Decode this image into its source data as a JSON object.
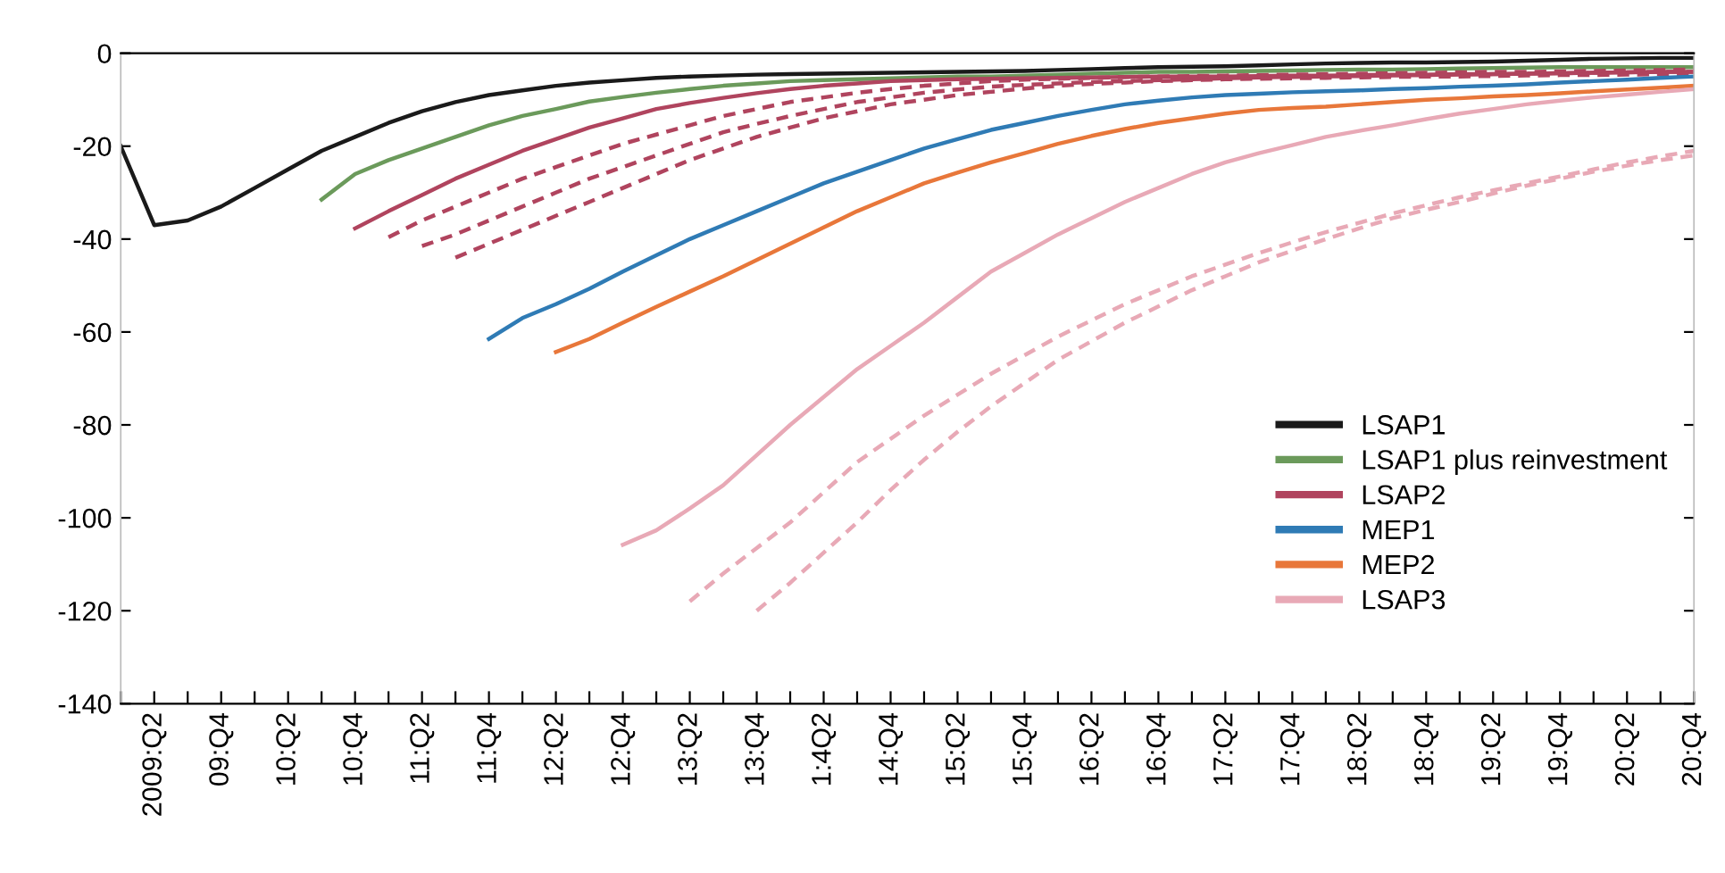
{
  "chart_data": {
    "type": "line",
    "categories": [
      null,
      "2009:Q2",
      null,
      "09:Q4",
      null,
      "10:Q2",
      null,
      "10:Q4",
      null,
      "11:Q2",
      null,
      "11:Q4",
      null,
      "12:Q2",
      null,
      "12:Q4",
      null,
      "13:Q2",
      null,
      "13:Q4",
      null,
      "1:4Q2",
      null,
      "14:Q4",
      null,
      "15:Q2",
      null,
      "15:Q4",
      null,
      "16:Q2",
      null,
      "16:Q4",
      null,
      "17:Q2",
      null,
      "17:Q4",
      null,
      "18:Q2",
      null,
      "18:Q4",
      null,
      "19:Q2",
      null,
      "19:Q4",
      null,
      "20:Q2",
      null,
      "20:Q4"
    ],
    "ylim": [
      -140,
      0
    ],
    "yticks": [
      -140,
      -120,
      -100,
      -80,
      -60,
      -40,
      -20,
      0
    ],
    "grid": false,
    "legend": "bottom right",
    "marker": "none",
    "series": [
      {
        "name": "LSAP1",
        "color": "#1a1a1a",
        "line_style": "solid",
        "values": [
          -20,
          -37,
          -36,
          -33,
          -29,
          -25,
          -21,
          -18,
          -15,
          -12.5,
          -10.5,
          -9,
          -8,
          -7,
          -6.3,
          -5.8,
          -5.3,
          -5,
          -4.8,
          -4.6,
          -4.5,
          -4.4,
          -4.3,
          -4.2,
          -4.1,
          -4,
          -3.9,
          -3.8,
          -3.6,
          -3.4,
          -3.2,
          -3,
          -2.9,
          -2.8,
          -2.6,
          -2.4,
          -2.2,
          -2.1,
          -2,
          -2,
          -1.9,
          -1.8,
          -1.6,
          -1.4,
          -1.2,
          -1.1,
          -1,
          -1
        ]
      },
      {
        "name": "LSAP1 plus reinvestment",
        "color": "#6b9a5b",
        "line_style": "solid",
        "values": [
          null,
          null,
          null,
          null,
          null,
          null,
          -31.5,
          -26,
          -23,
          -20.5,
          -18,
          -15.5,
          -13.5,
          -12,
          -10.4,
          -9.4,
          -8.5,
          -7.7,
          -7,
          -6.5,
          -6,
          -5.8,
          -5.6,
          -5.4,
          -5.2,
          -5,
          -5,
          -4.8,
          -4.6,
          -4.4,
          -4.2,
          -4,
          -4,
          -3.9,
          -3.8,
          -3.7,
          -3.6,
          -3.5,
          -3.5,
          -3.4,
          -3.3,
          -3.2,
          -3.1,
          -3,
          -3,
          -3,
          -3,
          -3
        ]
      },
      {
        "name": "LSAP2",
        "color": "#b0445e",
        "line_style": "solid",
        "values": [
          null,
          null,
          null,
          null,
          null,
          null,
          null,
          -37.7,
          -34,
          -30.5,
          -27,
          -24,
          -21,
          -18.5,
          -16,
          -14,
          -12,
          -10.7,
          -9.6,
          -8.6,
          -7.7,
          -7,
          -6.5,
          -6,
          -5.8,
          -5.6,
          -5.5,
          -5.4,
          -5.3,
          -5.2,
          -5.1,
          -5,
          -5,
          -5,
          -4.9,
          -4.8,
          -4.8,
          -4.7,
          -4.6,
          -4.6,
          -4.5,
          -4.5,
          -4.4,
          -4.3,
          -4.2,
          -4.1,
          -4,
          -4
        ]
      },
      {
        "color": "#b0445e",
        "line_style": "dashed",
        "values": [
          null,
          null,
          null,
          null,
          null,
          null,
          null,
          null,
          -39.6,
          -36,
          -33,
          -30,
          -27,
          -24.5,
          -22,
          -19.5,
          -17.5,
          -15.5,
          -13.5,
          -12,
          -10.5,
          -9.5,
          -8.5,
          -7.7,
          -7,
          -6.5,
          -6,
          -5.7,
          -5.5,
          -5.3,
          -5.1,
          -5,
          -4.9,
          -4.8,
          -4.7,
          -4.6,
          -4.5,
          -4.4,
          -4.3,
          -4.2,
          -4.1,
          -4,
          -4,
          -3.9,
          -3.8,
          -3.7,
          -3.6,
          -3.5
        ]
      },
      {
        "color": "#b0445e",
        "line_style": "dashed",
        "values": [
          null,
          null,
          null,
          null,
          null,
          null,
          null,
          null,
          null,
          -41.5,
          -39,
          -36,
          -33,
          -30,
          -27,
          -24.5,
          -22,
          -19.5,
          -17,
          -15.2,
          -13.5,
          -12,
          -10.5,
          -9.5,
          -8.5,
          -7.8,
          -7.2,
          -6.8,
          -6.5,
          -6.2,
          -6,
          -5.8,
          -5.6,
          -5.4,
          -5.2,
          -5.1,
          -5,
          -4.9,
          -4.8,
          -4.7,
          -4.6,
          -4.5,
          -4.4,
          -4.3,
          -4.2,
          -4.1,
          -4,
          -4
        ]
      },
      {
        "color": "#b0445e",
        "line_style": "dashed",
        "values": [
          null,
          null,
          null,
          null,
          null,
          null,
          null,
          null,
          null,
          null,
          -44,
          -41,
          -38,
          -35,
          -32,
          -29,
          -26,
          -23,
          -20.5,
          -18,
          -16,
          -14,
          -12.5,
          -11,
          -10,
          -9,
          -8.3,
          -7.6,
          -7,
          -6.6,
          -6.3,
          -6,
          -5.8,
          -5.6,
          -5.5,
          -5.4,
          -5.3,
          -5.2,
          -5.1,
          -5,
          -5,
          -4.9,
          -4.8,
          -4.7,
          -4.7,
          -4.6,
          -4.5,
          -4.5
        ]
      },
      {
        "name": "MEP1",
        "color": "#2f7bb5",
        "line_style": "solid",
        "values": [
          null,
          null,
          null,
          null,
          null,
          null,
          null,
          null,
          null,
          null,
          null,
          -61.5,
          -57,
          -54,
          -50.7,
          -47,
          -43.5,
          -40,
          -37,
          -34,
          -31,
          -28,
          -25.5,
          -23,
          -20.5,
          -18.5,
          -16.5,
          -15,
          -13.5,
          -12.2,
          -11,
          -10.2,
          -9.5,
          -9,
          -8.7,
          -8.4,
          -8.2,
          -8,
          -7.7,
          -7.5,
          -7.2,
          -7,
          -6.7,
          -6.3,
          -6,
          -5.7,
          -5.3,
          -5
        ]
      },
      {
        "name": "MEP2",
        "color": "#e8773a",
        "line_style": "solid",
        "values": [
          null,
          null,
          null,
          null,
          null,
          null,
          null,
          null,
          null,
          null,
          null,
          null,
          null,
          -64.3,
          -61.5,
          -58,
          -54.6,
          -51.3,
          -48,
          -44.5,
          -41,
          -37.5,
          -34,
          -31,
          -28,
          -25.7,
          -23.5,
          -21.5,
          -19.5,
          -17.8,
          -16.3,
          -15,
          -14,
          -13,
          -12.2,
          -11.8,
          -11.5,
          -11,
          -10.5,
          -10,
          -9.7,
          -9.3,
          -9,
          -8.6,
          -8.2,
          -7.8,
          -7.4,
          -7
        ]
      },
      {
        "name": "LSAP3",
        "color": "#e8a9b6",
        "line_style": "solid",
        "values": [
          null,
          null,
          null,
          null,
          null,
          null,
          null,
          null,
          null,
          null,
          null,
          null,
          null,
          null,
          null,
          -105.8,
          -102.7,
          -98,
          -93,
          -86.5,
          -80,
          -74,
          -68,
          -63,
          -58,
          -52.5,
          -47,
          -43,
          -39,
          -35.5,
          -32,
          -29,
          -26,
          -23.5,
          -21.5,
          -19.8,
          -18,
          -16.7,
          -15.5,
          -14.2,
          -13,
          -12,
          -11,
          -10.2,
          -9.5,
          -8.9,
          -8.3,
          -7.7
        ]
      },
      {
        "color": "#e8a9b6",
        "line_style": "dashed",
        "values": [
          null,
          null,
          null,
          null,
          null,
          null,
          null,
          null,
          null,
          null,
          null,
          null,
          null,
          null,
          null,
          null,
          null,
          -118,
          -112,
          -106.5,
          -101,
          -94.5,
          -88,
          -83,
          -78,
          -73.5,
          -69,
          -65,
          -61,
          -57.5,
          -54,
          -51,
          -48,
          -45.5,
          -43,
          -40.7,
          -38.5,
          -36.5,
          -34.5,
          -32.7,
          -31,
          -29.5,
          -28,
          -26.5,
          -25,
          -23.5,
          -22.2,
          -21
        ]
      },
      {
        "color": "#e8a9b6",
        "line_style": "dashed",
        "values": [
          null,
          null,
          null,
          null,
          null,
          null,
          null,
          null,
          null,
          null,
          null,
          null,
          null,
          null,
          null,
          null,
          null,
          null,
          null,
          -120,
          -114,
          -107.5,
          -101,
          -94,
          -87.5,
          -81.5,
          -76,
          -71,
          -66,
          -62,
          -58,
          -54.5,
          -51,
          -48,
          -45,
          -42.5,
          -40,
          -37.7,
          -35.5,
          -33.7,
          -32,
          -30.2,
          -28.5,
          -27,
          -25.5,
          -24.2,
          -23,
          -22
        ]
      }
    ]
  }
}
